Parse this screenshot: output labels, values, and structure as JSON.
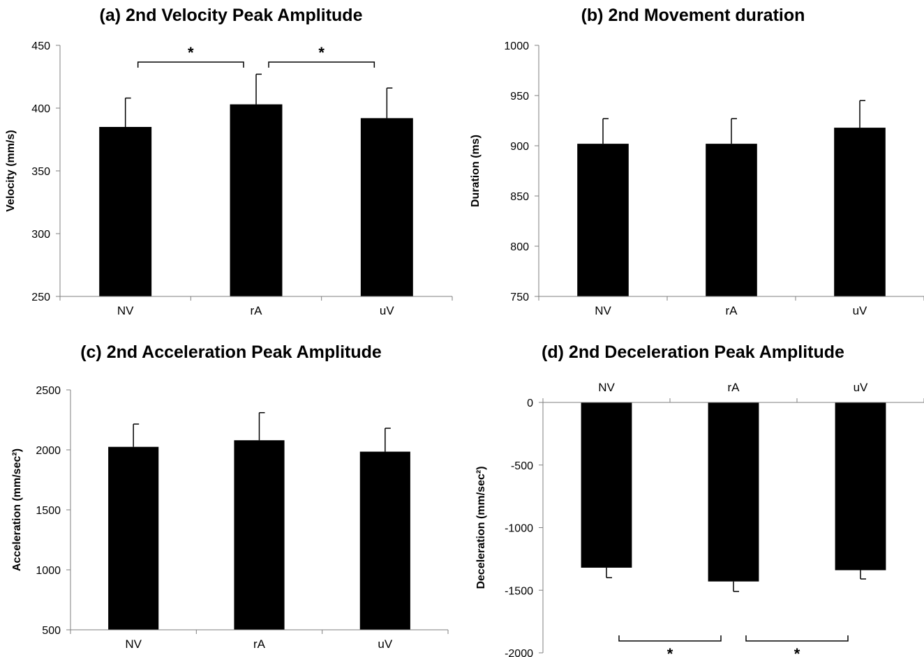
{
  "chart_data": [
    {
      "type": "bar",
      "title": "(a) 2nd Velocity Peak Amplitude",
      "xlabel": "",
      "ylabel": "Velocity (mm/s)",
      "categories": [
        "NV",
        "rA",
        "uV"
      ],
      "values": [
        385,
        403,
        392
      ],
      "error": [
        23,
        24,
        24
      ],
      "ylim": [
        250,
        450
      ],
      "yticks": [
        250,
        300,
        350,
        400,
        450
      ],
      "ytick_labels": [
        "250",
        "300",
        "350",
        "400",
        "450"
      ],
      "axis_position": "bottom",
      "bar_color": "#000000",
      "grid": false,
      "significance": [
        {
          "from": 0,
          "to": 1,
          "label": "*"
        },
        {
          "from": 1,
          "to": 2,
          "label": "*"
        }
      ]
    },
    {
      "type": "bar",
      "title": "(b) 2nd Movement duration",
      "xlabel": "",
      "ylabel": "Duration (ms)",
      "categories": [
        "NV",
        "rA",
        "uV"
      ],
      "values": [
        902,
        902,
        918
      ],
      "error": [
        25,
        25,
        27
      ],
      "ylim": [
        750,
        1000
      ],
      "yticks": [
        750,
        800,
        850,
        900,
        950,
        1000
      ],
      "ytick_labels": [
        "750",
        "800",
        "850",
        "900",
        "950",
        "1000"
      ],
      "axis_position": "bottom",
      "bar_color": "#000000",
      "grid": false,
      "significance": []
    },
    {
      "type": "bar",
      "title": "(c) 2nd Acceleration Peak Amplitude",
      "xlabel": "",
      "ylabel": "Acceleration (mm/sec²)",
      "categories": [
        "NV",
        "rA",
        "uV"
      ],
      "values": [
        2025,
        2080,
        1985
      ],
      "error": [
        190,
        230,
        195
      ],
      "ylim": [
        500,
        2500
      ],
      "yticks": [
        500,
        1000,
        1500,
        2000,
        2500
      ],
      "ytick_labels": [
        "500",
        "1000",
        "1500",
        "2000",
        "2500"
      ],
      "axis_position": "bottom",
      "bar_color": "#000000",
      "grid": false,
      "significance": []
    },
    {
      "type": "bar",
      "title": "(d) 2nd Deceleration Peak Amplitude",
      "xlabel": "",
      "ylabel": "Deceleration (mm/sec²)",
      "categories": [
        "NV",
        "rA",
        "uV"
      ],
      "values": [
        -1320,
        -1430,
        -1340
      ],
      "error": [
        80,
        80,
        70
      ],
      "ylim": [
        -2000,
        0
      ],
      "yticks": [
        -2000,
        -1500,
        -1000,
        -500,
        0
      ],
      "ytick_labels": [
        "-2000",
        "-1500",
        "-1000",
        "-500",
        "0"
      ],
      "axis_position": "top",
      "bar_color": "#000000",
      "grid": false,
      "significance": [
        {
          "from": 0,
          "to": 1,
          "label": "*"
        },
        {
          "from": 1,
          "to": 2,
          "label": "*"
        }
      ]
    }
  ]
}
